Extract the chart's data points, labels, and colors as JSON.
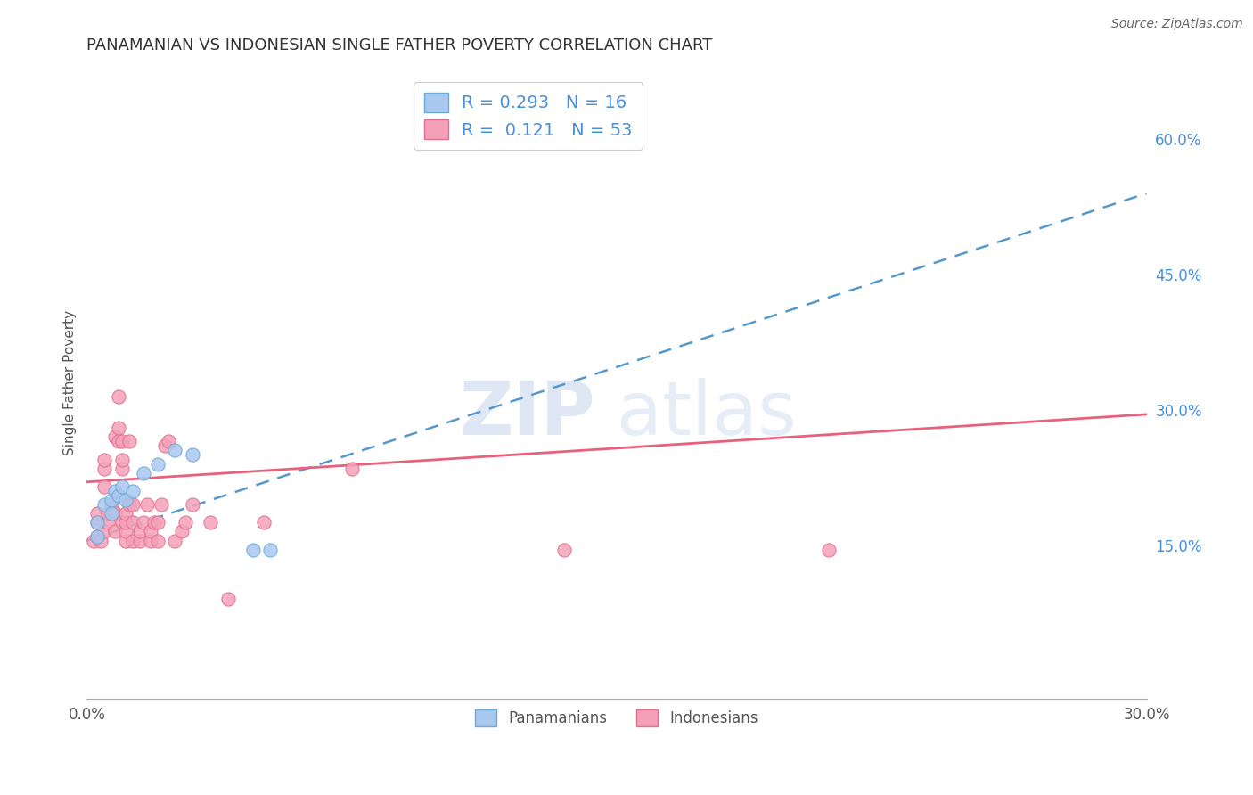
{
  "title": "PANAMANIAN VS INDONESIAN SINGLE FATHER POVERTY CORRELATION CHART",
  "source": "Source: ZipAtlas.com",
  "ylabel": "Single Father Poverty",
  "xlim": [
    0.0,
    0.3
  ],
  "ylim": [
    -0.02,
    0.68
  ],
  "xticks": [
    0.0,
    0.05,
    0.1,
    0.15,
    0.2,
    0.25,
    0.3
  ],
  "ytick_labels_right": [
    "15.0%",
    "30.0%",
    "45.0%",
    "60.0%"
  ],
  "ytick_vals_right": [
    0.15,
    0.3,
    0.45,
    0.6
  ],
  "panamanian_color": "#a8c8f0",
  "panamanian_edge": "#6aaad4",
  "indonesian_color": "#f4a0b8",
  "indonesian_edge": "#e07090",
  "panamanian_line_color": "#5599cc",
  "indonesian_line_color": "#e8607a",
  "panamanian_R": 0.293,
  "panamanian_N": 16,
  "indonesian_R": 0.121,
  "indonesian_N": 53,
  "panamanian_scatter": [
    [
      0.003,
      0.175
    ],
    [
      0.003,
      0.16
    ],
    [
      0.005,
      0.195
    ],
    [
      0.007,
      0.2
    ],
    [
      0.007,
      0.185
    ],
    [
      0.008,
      0.21
    ],
    [
      0.009,
      0.205
    ],
    [
      0.01,
      0.215
    ],
    [
      0.011,
      0.2
    ],
    [
      0.013,
      0.21
    ],
    [
      0.016,
      0.23
    ],
    [
      0.02,
      0.24
    ],
    [
      0.025,
      0.255
    ],
    [
      0.03,
      0.25
    ],
    [
      0.047,
      0.145
    ],
    [
      0.052,
      0.145
    ]
  ],
  "indonesian_scatter": [
    [
      0.002,
      0.155
    ],
    [
      0.003,
      0.16
    ],
    [
      0.003,
      0.175
    ],
    [
      0.003,
      0.185
    ],
    [
      0.004,
      0.155
    ],
    [
      0.005,
      0.165
    ],
    [
      0.005,
      0.215
    ],
    [
      0.005,
      0.235
    ],
    [
      0.005,
      0.245
    ],
    [
      0.006,
      0.175
    ],
    [
      0.006,
      0.185
    ],
    [
      0.007,
      0.195
    ],
    [
      0.008,
      0.165
    ],
    [
      0.008,
      0.185
    ],
    [
      0.008,
      0.27
    ],
    [
      0.009,
      0.265
    ],
    [
      0.009,
      0.28
    ],
    [
      0.009,
      0.315
    ],
    [
      0.01,
      0.175
    ],
    [
      0.01,
      0.235
    ],
    [
      0.01,
      0.245
    ],
    [
      0.01,
      0.265
    ],
    [
      0.011,
      0.155
    ],
    [
      0.011,
      0.165
    ],
    [
      0.011,
      0.175
    ],
    [
      0.011,
      0.185
    ],
    [
      0.012,
      0.195
    ],
    [
      0.012,
      0.265
    ],
    [
      0.013,
      0.155
    ],
    [
      0.013,
      0.175
    ],
    [
      0.013,
      0.195
    ],
    [
      0.015,
      0.155
    ],
    [
      0.015,
      0.165
    ],
    [
      0.016,
      0.175
    ],
    [
      0.017,
      0.195
    ],
    [
      0.018,
      0.155
    ],
    [
      0.018,
      0.165
    ],
    [
      0.019,
      0.175
    ],
    [
      0.02,
      0.155
    ],
    [
      0.02,
      0.175
    ],
    [
      0.021,
      0.195
    ],
    [
      0.022,
      0.26
    ],
    [
      0.023,
      0.265
    ],
    [
      0.025,
      0.155
    ],
    [
      0.027,
      0.165
    ],
    [
      0.028,
      0.175
    ],
    [
      0.03,
      0.195
    ],
    [
      0.035,
      0.175
    ],
    [
      0.04,
      0.09
    ],
    [
      0.05,
      0.175
    ],
    [
      0.075,
      0.235
    ],
    [
      0.135,
      0.145
    ],
    [
      0.21,
      0.145
    ]
  ],
  "watermark_zip": "ZIP",
  "watermark_atlas": "atlas",
  "background_color": "#ffffff",
  "grid_color": "#e0e0e0"
}
